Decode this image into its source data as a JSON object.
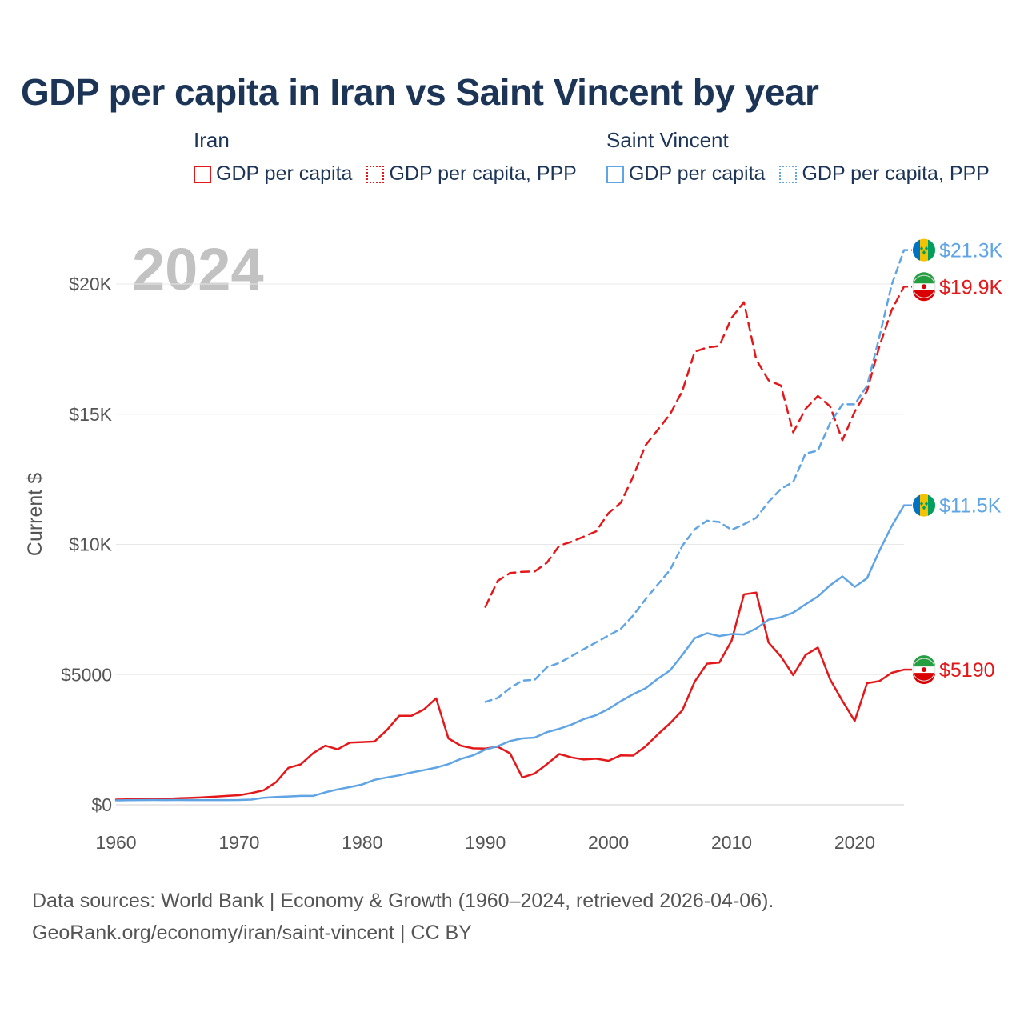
{
  "title": "GDP per capita in Iran vs Saint Vincent by year",
  "legend": [
    {
      "country": "Iran",
      "items": [
        {
          "label": "GDP per capita",
          "color": "#e3181a",
          "style": "solid"
        },
        {
          "label": "GDP per capita, PPP",
          "color": "#e3181a",
          "style": "dotted"
        }
      ]
    },
    {
      "country": "Saint Vincent",
      "items": [
        {
          "label": "GDP per capita",
          "color": "#5fa4e4",
          "style": "solid"
        },
        {
          "label": "GDP per capita, PPP",
          "color": "#5fa4e4",
          "style": "dotted"
        }
      ]
    }
  ],
  "footer": {
    "line1": "Data sources: World Bank | Economy & Growth (1960–2024, retrieved 2026-04-06).",
    "line2": "GeoRank.org/economy/iran/saint-vincent | CC BY"
  },
  "chart_data": {
    "type": "line",
    "title": "GDP per capita in Iran vs Saint Vincent by year",
    "year_label": "2024",
    "xlabel": "",
    "ylabel": "Current $",
    "xlim": [
      1960,
      2024
    ],
    "ylim": [
      0,
      20000
    ],
    "x_ticks": [
      1960,
      1970,
      1980,
      1990,
      2000,
      2010,
      2020
    ],
    "y_ticks": [
      0,
      5000,
      10000,
      15000,
      20000
    ],
    "y_tick_labels": [
      "$0",
      "$5000",
      "$10K",
      "$15K",
      "$20K"
    ],
    "grid": true,
    "series": [
      {
        "name": "Iran GDP per capita",
        "color": "#e3181a",
        "dash": "none",
        "end_label": "$5190",
        "flag": "iran-flag",
        "x": [
          1960,
          1961,
          1962,
          1963,
          1964,
          1965,
          1966,
          1967,
          1968,
          1969,
          1970,
          1971,
          1972,
          1973,
          1974,
          1975,
          1976,
          1977,
          1978,
          1979,
          1980,
          1981,
          1982,
          1983,
          1984,
          1985,
          1986,
          1987,
          1988,
          1989,
          1990,
          1991,
          1992,
          1993,
          1994,
          1995,
          1996,
          1997,
          1998,
          1999,
          2000,
          2001,
          2002,
          2003,
          2004,
          2005,
          2006,
          2007,
          2008,
          2009,
          2010,
          2011,
          2012,
          2013,
          2014,
          2015,
          2016,
          2017,
          2018,
          2019,
          2020,
          2021,
          2022,
          2023,
          2024
        ],
        "values": [
          200,
          210,
          210,
          215,
          225,
          250,
          265,
          285,
          310,
          340,
          370,
          450,
          560,
          870,
          1420,
          1550,
          1980,
          2270,
          2130,
          2390,
          2410,
          2430,
          2870,
          3420,
          3420,
          3660,
          4090,
          2550,
          2270,
          2170,
          2160,
          2230,
          1980,
          1050,
          1200,
          1560,
          1950,
          1820,
          1740,
          1770,
          1690,
          1900,
          1890,
          2240,
          2700,
          3130,
          3630,
          4730,
          5420,
          5460,
          6300,
          8080,
          8150,
          6230,
          5700,
          4980,
          5750,
          6040,
          4810,
          3990,
          3220,
          4670,
          4750,
          5070,
          5190
        ]
      },
      {
        "name": "Iran GDP per capita, PPP",
        "color": "#e3181a",
        "dash": "10,7",
        "end_label": "$19.9K",
        "flag": "iran-flag",
        "x": [
          1990,
          1991,
          1992,
          1993,
          1994,
          1995,
          1996,
          1997,
          1998,
          1999,
          2000,
          2001,
          2002,
          2003,
          2004,
          2005,
          2006,
          2007,
          2008,
          2009,
          2010,
          2011,
          2012,
          2013,
          2014,
          2015,
          2016,
          2017,
          2018,
          2019,
          2020,
          2021,
          2022,
          2023,
          2024
        ],
        "values": [
          7600,
          8600,
          8900,
          8950,
          8960,
          9300,
          9950,
          10100,
          10300,
          10500,
          11200,
          11600,
          12600,
          13800,
          14400,
          15000,
          15900,
          17400,
          17560,
          17620,
          18700,
          19300,
          17100,
          16300,
          16100,
          14300,
          15200,
          15700,
          15300,
          14000,
          15100,
          15900,
          17600,
          19000,
          19900
        ]
      },
      {
        "name": "Saint Vincent GDP per capita",
        "color": "#5fa4e4",
        "dash": "none",
        "end_label": "$11.5K",
        "flag": "saint-vincent-flag",
        "x": [
          1960,
          1961,
          1962,
          1963,
          1964,
          1965,
          1966,
          1967,
          1968,
          1969,
          1970,
          1971,
          1972,
          1973,
          1974,
          1975,
          1976,
          1977,
          1978,
          1979,
          1980,
          1981,
          1982,
          1983,
          1984,
          1985,
          1986,
          1987,
          1988,
          1989,
          1990,
          1991,
          1992,
          1993,
          1994,
          1995,
          1996,
          1997,
          1998,
          1999,
          2000,
          2001,
          2002,
          2003,
          2004,
          2005,
          2006,
          2007,
          2008,
          2009,
          2010,
          2011,
          2012,
          2013,
          2014,
          2015,
          2016,
          2017,
          2018,
          2019,
          2020,
          2021,
          2022,
          2023,
          2024
        ],
        "values": [
          170,
          175,
          180,
          185,
          180,
          185,
          180,
          180,
          180,
          180,
          185,
          200,
          270,
          300,
          320,
          340,
          340,
          480,
          590,
          680,
          780,
          960,
          1050,
          1130,
          1240,
          1330,
          1430,
          1560,
          1760,
          1900,
          2120,
          2250,
          2450,
          2550,
          2580,
          2790,
          2920,
          3080,
          3290,
          3440,
          3680,
          3980,
          4250,
          4470,
          4840,
          5160,
          5760,
          6400,
          6590,
          6480,
          6560,
          6540,
          6770,
          7110,
          7200,
          7380,
          7700,
          8000,
          8430,
          8770,
          8370,
          8700,
          9750,
          10700,
          11500
        ]
      },
      {
        "name": "Saint Vincent GDP per capita, PPP",
        "color": "#5fa4e4",
        "dash": "8,6",
        "end_label": "$21.3K",
        "flag": "saint-vincent-flag",
        "x": [
          1990,
          1991,
          1992,
          1993,
          1994,
          1995,
          1996,
          1997,
          1998,
          1999,
          2000,
          2001,
          2002,
          2003,
          2004,
          2005,
          2006,
          2007,
          2008,
          2009,
          2010,
          2011,
          2012,
          2013,
          2014,
          2015,
          2016,
          2017,
          2018,
          2019,
          2020,
          2021,
          2022,
          2023,
          2024
        ],
        "values": [
          3950,
          4100,
          4480,
          4770,
          4800,
          5280,
          5450,
          5710,
          5980,
          6240,
          6500,
          6760,
          7270,
          7890,
          8460,
          9020,
          9950,
          10580,
          10910,
          10860,
          10560,
          10770,
          11020,
          11630,
          12130,
          12400,
          13490,
          13600,
          14660,
          15380,
          15380,
          16090,
          17970,
          19970,
          21300
        ]
      }
    ]
  }
}
